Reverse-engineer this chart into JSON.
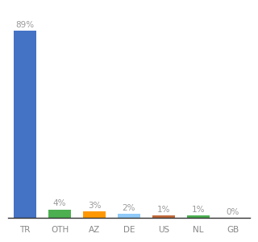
{
  "categories": [
    "TR",
    "OTH",
    "AZ",
    "DE",
    "US",
    "NL",
    "GB"
  ],
  "values": [
    89,
    4,
    3,
    2,
    1,
    1,
    0
  ],
  "labels": [
    "89%",
    "4%",
    "3%",
    "2%",
    "1%",
    "1%",
    "0%"
  ],
  "bar_colors": [
    "#4472C4",
    "#4CAF50",
    "#FF9800",
    "#90CAF9",
    "#C0693A",
    "#4CAF50",
    "#AAAAAA"
  ],
  "background_color": "#ffffff",
  "ylim": [
    0,
    100
  ],
  "label_color": "#999999",
  "label_fontsize": 7.5,
  "tick_fontsize": 7.5,
  "tick_color": "#888888"
}
